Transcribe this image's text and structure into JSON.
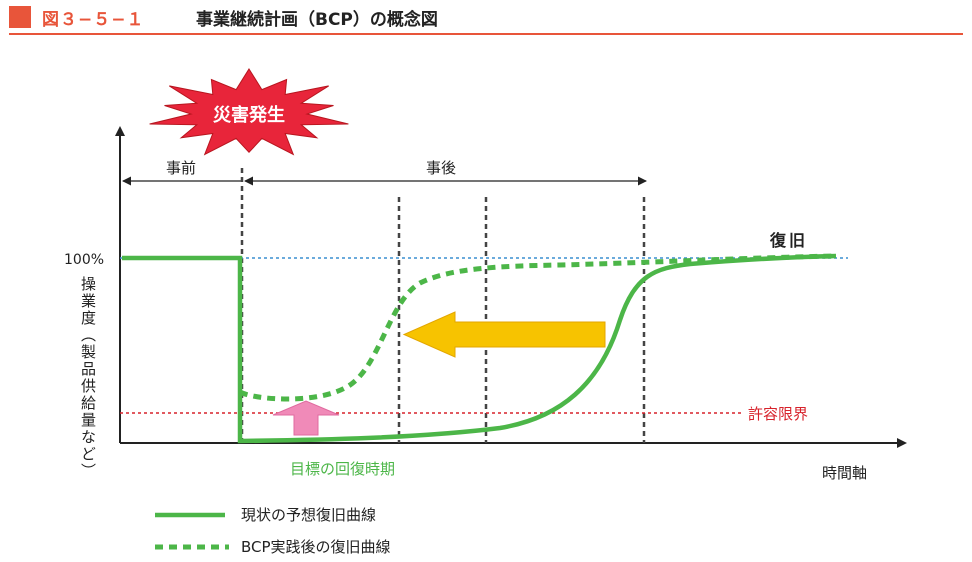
{
  "header": {
    "figure_number": "図３−５−１",
    "title": "事業継続計画（BCP）の概念図"
  },
  "colors": {
    "accent": "#e8553a",
    "current_curve": "#4cb648",
    "bcp_curve": "#4cb648",
    "baseline_100": "#3a8fd0",
    "tolerance": "#d7222b",
    "arrow_yellow": "#f7c300",
    "arrow_pink": "#f08ab8",
    "burst": "#e8253a",
    "axis": "#222222"
  },
  "labels": {
    "disaster": "災害発生",
    "before": "事前",
    "after": "事後",
    "hundred_percent": "100%",
    "y_axis": "操業度（製品供給量など）",
    "x_axis": "時間軸",
    "recovery": "復旧",
    "tolerance_limit": "許容限界",
    "target_recovery_time": "目標の回復時期"
  },
  "legend": {
    "current": "現状の予想復旧曲線",
    "bcp": "BCP実践後の復旧曲線"
  },
  "icons": {
    "burst": "explosion-burst-icon",
    "left_arrow": "yellow-left-arrow-icon",
    "up_arrow": "pink-up-arrow-icon"
  }
}
